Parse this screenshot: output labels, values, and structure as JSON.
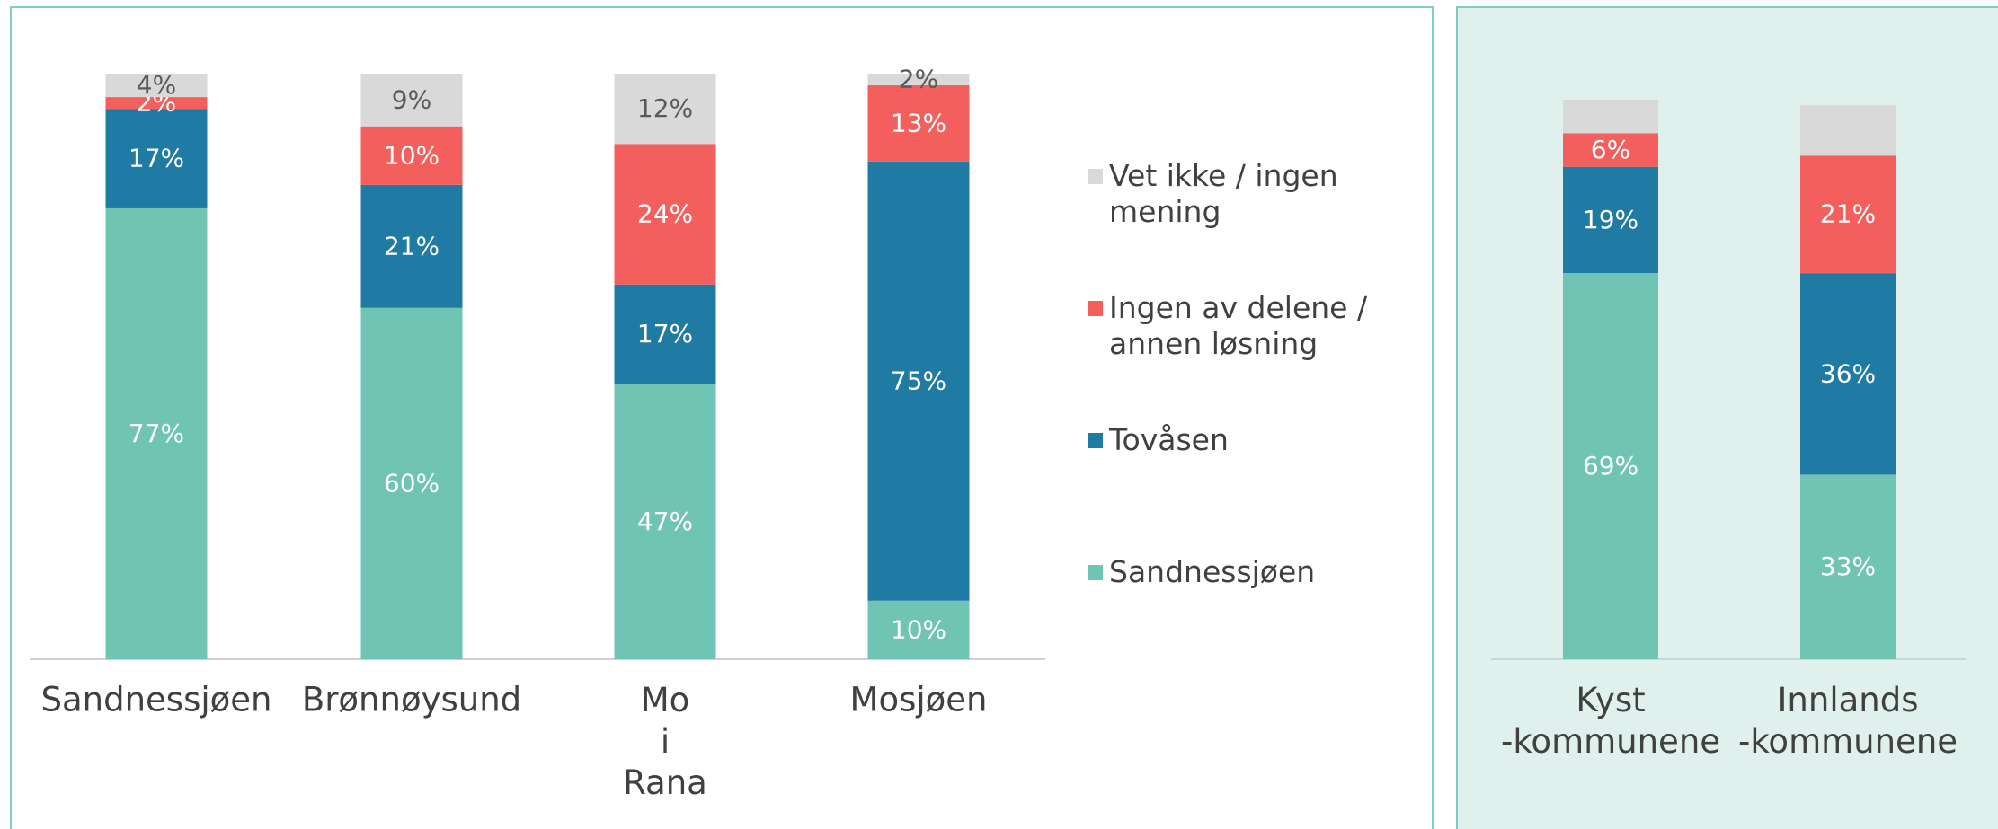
{
  "chart_data": [
    {
      "type": "stacked_bar",
      "legend": "right",
      "ylim": [
        0,
        100
      ],
      "categories": [
        "Sandnessjøen",
        "Brønnøysund",
        "Mo i Rana",
        "Mosjøen"
      ],
      "series": [
        {
          "name": "Sandnessjøen",
          "color": "#70c4b4",
          "values": [
            77,
            60,
            47,
            10
          ],
          "value_labels": [
            "77%",
            "60%",
            "47%",
            "10%"
          ]
        },
        {
          "name": "Tovåsen",
          "color": "#1f7ba3",
          "values": [
            17,
            21,
            17,
            75
          ],
          "value_labels": [
            "17%",
            "21%",
            "17%",
            "75%"
          ]
        },
        {
          "name": "Ingen av delene / annen løsning",
          "color": "#f25f5c",
          "values": [
            2,
            10,
            24,
            13
          ],
          "value_labels": [
            "2%",
            "10%",
            "24%",
            "13%"
          ]
        },
        {
          "name": "Vet ikke / ingen mening",
          "color": "#d9d9d9",
          "values": [
            4,
            9,
            12,
            2
          ],
          "value_labels": [
            "4%",
            "9%",
            "12%",
            "2%"
          ]
        }
      ]
    },
    {
      "type": "stacked_bar",
      "ylim": [
        0,
        100
      ],
      "categories": [
        "Kyst -kommunene",
        "Innlands -kommunene"
      ],
      "series": [
        {
          "name": "Sandnessjøen",
          "color": "#70c4b4",
          "values": [
            69,
            33
          ],
          "value_labels": [
            "69%",
            "33%"
          ]
        },
        {
          "name": "Tovåsen",
          "color": "#1f7ba3",
          "values": [
            19,
            36
          ],
          "value_labels": [
            "19%",
            "36%"
          ]
        },
        {
          "name": "Ingen av delene / annen løsning",
          "color": "#f25f5c",
          "values": [
            6,
            21
          ],
          "value_labels": [
            "6%",
            "21%"
          ]
        },
        {
          "name": "Vet ikke / ingen mening",
          "color": "#d9d9d9",
          "values": [
            6,
            9
          ]
        }
      ]
    }
  ]
}
